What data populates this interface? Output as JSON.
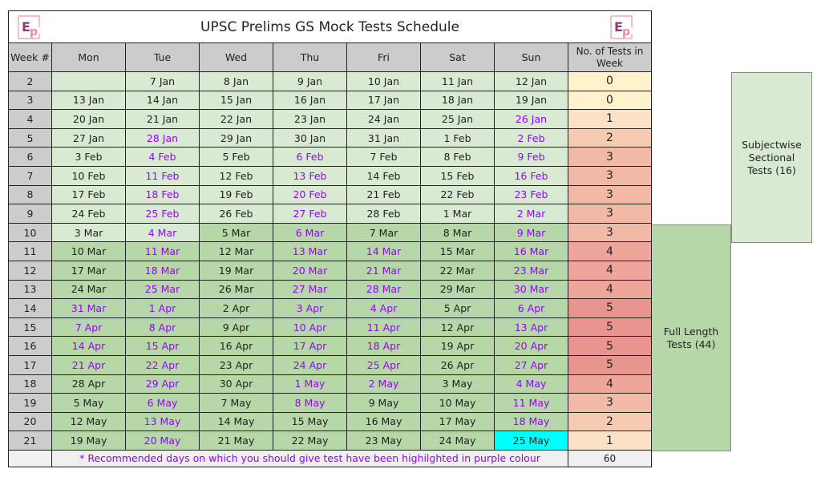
{
  "title": "UPSC Prelims GS Mock Tests Schedule",
  "logo_text": "Ep",
  "headers": {
    "week": "Week #",
    "days": [
      "Mon",
      "Tue",
      "Wed",
      "Thu",
      "Fri",
      "Sat",
      "Sun"
    ],
    "count": "No. of Tests in Week"
  },
  "rows": [
    {
      "week": "2",
      "dates": [
        "",
        "7 Jan",
        "8 Jan",
        "9 Jan",
        "10 Jan",
        "11 Jan",
        "12 Jan"
      ],
      "hl": [],
      "count": "0"
    },
    {
      "week": "3",
      "dates": [
        "13 Jan",
        "14 Jan",
        "15 Jan",
        "16 Jan",
        "17 Jan",
        "18 Jan",
        "19 Jan"
      ],
      "hl": [],
      "count": "0"
    },
    {
      "week": "4",
      "dates": [
        "20 Jan",
        "21 Jan",
        "22 Jan",
        "23 Jan",
        "24 Jan",
        "25 Jan",
        "26 Jan"
      ],
      "hl": [
        6
      ],
      "count": "1"
    },
    {
      "week": "5",
      "dates": [
        "27 Jan",
        "28 Jan",
        "29 Jan",
        "30 Jan",
        "31 Jan",
        "1 Feb",
        "2 Feb"
      ],
      "hl": [
        1,
        6
      ],
      "count": "2"
    },
    {
      "week": "6",
      "dates": [
        "3 Feb",
        "4 Feb",
        "5 Feb",
        "6 Feb",
        "7 Feb",
        "8 Feb",
        "9 Feb"
      ],
      "hl": [
        1,
        3,
        6
      ],
      "count": "3"
    },
    {
      "week": "7",
      "dates": [
        "10 Feb",
        "11 Feb",
        "12 Feb",
        "13 Feb",
        "14 Feb",
        "15 Feb",
        "16 Feb"
      ],
      "hl": [
        1,
        3,
        6
      ],
      "count": "3"
    },
    {
      "week": "8",
      "dates": [
        "17 Feb",
        "18 Feb",
        "19 Feb",
        "20 Feb",
        "21 Feb",
        "22 Feb",
        "23 Feb"
      ],
      "hl": [
        1,
        3,
        6
      ],
      "count": "3"
    },
    {
      "week": "9",
      "dates": [
        "24 Feb",
        "25 Feb",
        "26 Feb",
        "27 Feb",
        "28 Feb",
        "1 Mar",
        "2 Mar"
      ],
      "hl": [
        1,
        3,
        6
      ],
      "count": "3"
    },
    {
      "week": "10",
      "dates": [
        "3 Mar",
        "4 Mar",
        "5 Mar",
        "6 Mar",
        "7 Mar",
        "8 Mar",
        "9 Mar"
      ],
      "hl": [
        1,
        3,
        6
      ],
      "count": "3"
    },
    {
      "week": "11",
      "dates": [
        "10 Mar",
        "11 Mar",
        "12 Mar",
        "13 Mar",
        "14 Mar",
        "15 Mar",
        "16 Mar"
      ],
      "hl": [
        1,
        3,
        4,
        6
      ],
      "count": "4"
    },
    {
      "week": "12",
      "dates": [
        "17 Mar",
        "18 Mar",
        "19 Mar",
        "20 Mar",
        "21 Mar",
        "22 Mar",
        "23 Mar"
      ],
      "hl": [
        1,
        3,
        4,
        6
      ],
      "count": "4"
    },
    {
      "week": "13",
      "dates": [
        "24 Mar",
        "25 Mar",
        "26 Mar",
        "27 Mar",
        "28 Mar",
        "29 Mar",
        "30 Mar"
      ],
      "hl": [
        1,
        3,
        4,
        6
      ],
      "count": "4"
    },
    {
      "week": "14",
      "dates": [
        "31 Mar",
        "1 Apr",
        "2 Apr",
        "3 Apr",
        "4 Apr",
        "5 Apr",
        "6 Apr"
      ],
      "hl": [
        0,
        1,
        3,
        4,
        6
      ],
      "count": "5"
    },
    {
      "week": "15",
      "dates": [
        "7 Apr",
        "8 Apr",
        "9 Apr",
        "10 Apr",
        "11 Apr",
        "12 Apr",
        "13 Apr"
      ],
      "hl": [
        0,
        1,
        3,
        4,
        6
      ],
      "count": "5"
    },
    {
      "week": "16",
      "dates": [
        "14 Apr",
        "15 Apr",
        "16 Apr",
        "17 Apr",
        "18 Apr",
        "19 Apr",
        "20 Apr"
      ],
      "hl": [
        0,
        1,
        3,
        4,
        6
      ],
      "count": "5"
    },
    {
      "week": "17",
      "dates": [
        "21 Apr",
        "22 Apr",
        "23 Apr",
        "24 Apr",
        "25 Apr",
        "26 Apr",
        "27 Apr"
      ],
      "hl": [
        0,
        1,
        3,
        4,
        6
      ],
      "count": "5"
    },
    {
      "week": "18",
      "dates": [
        "28 Apr",
        "29 Apr",
        "30 Apr",
        "1 May",
        "2 May",
        "3 May",
        "4 May"
      ],
      "hl": [
        1,
        3,
        4,
        6
      ],
      "count": "4"
    },
    {
      "week": "19",
      "dates": [
        "5 May",
        "6 May",
        "7 May",
        "8 May",
        "9 May",
        "10 May",
        "11 May"
      ],
      "hl": [
        1,
        3,
        6
      ],
      "count": "3"
    },
    {
      "week": "20",
      "dates": [
        "12 May",
        "13 May",
        "14 May",
        "15 May",
        "16 May",
        "17 May",
        "18 May"
      ],
      "hl": [
        1,
        6
      ],
      "count": "2"
    },
    {
      "week": "21",
      "dates": [
        "19 May",
        "20 May",
        "21 May",
        "22 May",
        "23 May",
        "24 May",
        "25 May"
      ],
      "hl": [
        1
      ],
      "count": "1"
    }
  ],
  "count_colors": {
    "0": "#fff2cc",
    "1": "#fbe2c6",
    "2": "#f6cbb3",
    "3": "#f2b9a7",
    "4": "#eea69b",
    "5": "#e9958f"
  },
  "colors": {
    "purple": "#9900ff",
    "sectional_green": "#d9ead3",
    "full_length_green": "#b6d7a8",
    "final_day": "#00ffff"
  },
  "footer": {
    "note": "* Recommended days on which you should give test have been highilghted in purple colour",
    "total": "60"
  },
  "side": {
    "sectional": "Subjectwise Sectional Tests (16)",
    "full_length": "Full Length Tests (44)"
  }
}
